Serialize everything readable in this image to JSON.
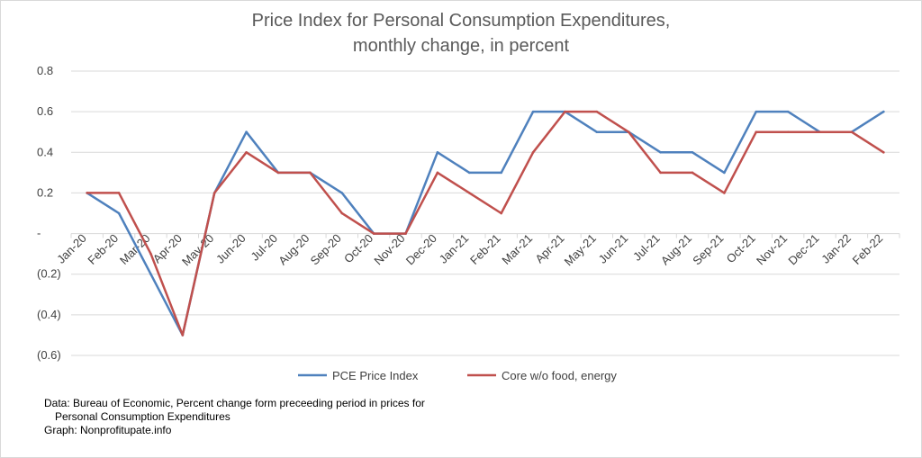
{
  "chart_data": {
    "type": "line",
    "title": [
      "Price Index for Personal Consumption Expenditures,",
      "monthly change, in percent"
    ],
    "categories": [
      "Jan-20",
      "Feb-20",
      "Mar-20",
      "Apr-20",
      "May-20",
      "Jun-20",
      "Jul-20",
      "Aug-20",
      "Sep-20",
      "Oct-20",
      "Nov-20",
      "Dec-20",
      "Jan-21",
      "Feb-21",
      "Mar-21",
      "Apr-21",
      "May-21",
      "Jun-21",
      "Jul-21",
      "Aug-21",
      "Sep-21",
      "Oct-21",
      "Nov-21",
      "Dec-21",
      "Jan-22",
      "Feb-22"
    ],
    "series": [
      {
        "name": "PCE Price Index",
        "color": "#4f81bd",
        "values": [
          0.2,
          0.1,
          -0.2,
          -0.5,
          0.2,
          0.5,
          0.3,
          0.3,
          0.2,
          0.0,
          0.0,
          0.4,
          0.3,
          0.3,
          0.6,
          0.6,
          0.5,
          0.5,
          0.4,
          0.4,
          0.3,
          0.6,
          0.6,
          0.5,
          0.5,
          0.6
        ]
      },
      {
        "name": "Core w/o food, energy",
        "color": "#c0504d",
        "values": [
          0.2,
          0.2,
          -0.1,
          -0.5,
          0.2,
          0.4,
          0.3,
          0.3,
          0.1,
          0.0,
          0.0,
          0.3,
          0.2,
          0.1,
          0.4,
          0.6,
          0.6,
          0.5,
          0.3,
          0.3,
          0.2,
          0.5,
          0.5,
          0.5,
          0.5,
          0.4
        ]
      }
    ],
    "ylim": [
      -0.6,
      0.8
    ],
    "yticks": [
      0.8,
      0.6,
      0.4,
      0.2,
      0,
      -0.2,
      -0.4,
      -0.6
    ],
    "ytick_labels": [
      "0.8",
      "0.6",
      "0.4",
      "0.2",
      "-",
      "(0.2)",
      "(0.4)",
      "(0.6)"
    ],
    "grid": true,
    "legend_position": "bottom"
  },
  "notes": {
    "line1": "Data: Bureau of Economic, Percent change form preceeding period in prices for",
    "line2": "Personal Consumption Expenditures",
    "line3": "Graph:  Nonprofitupate.info"
  }
}
